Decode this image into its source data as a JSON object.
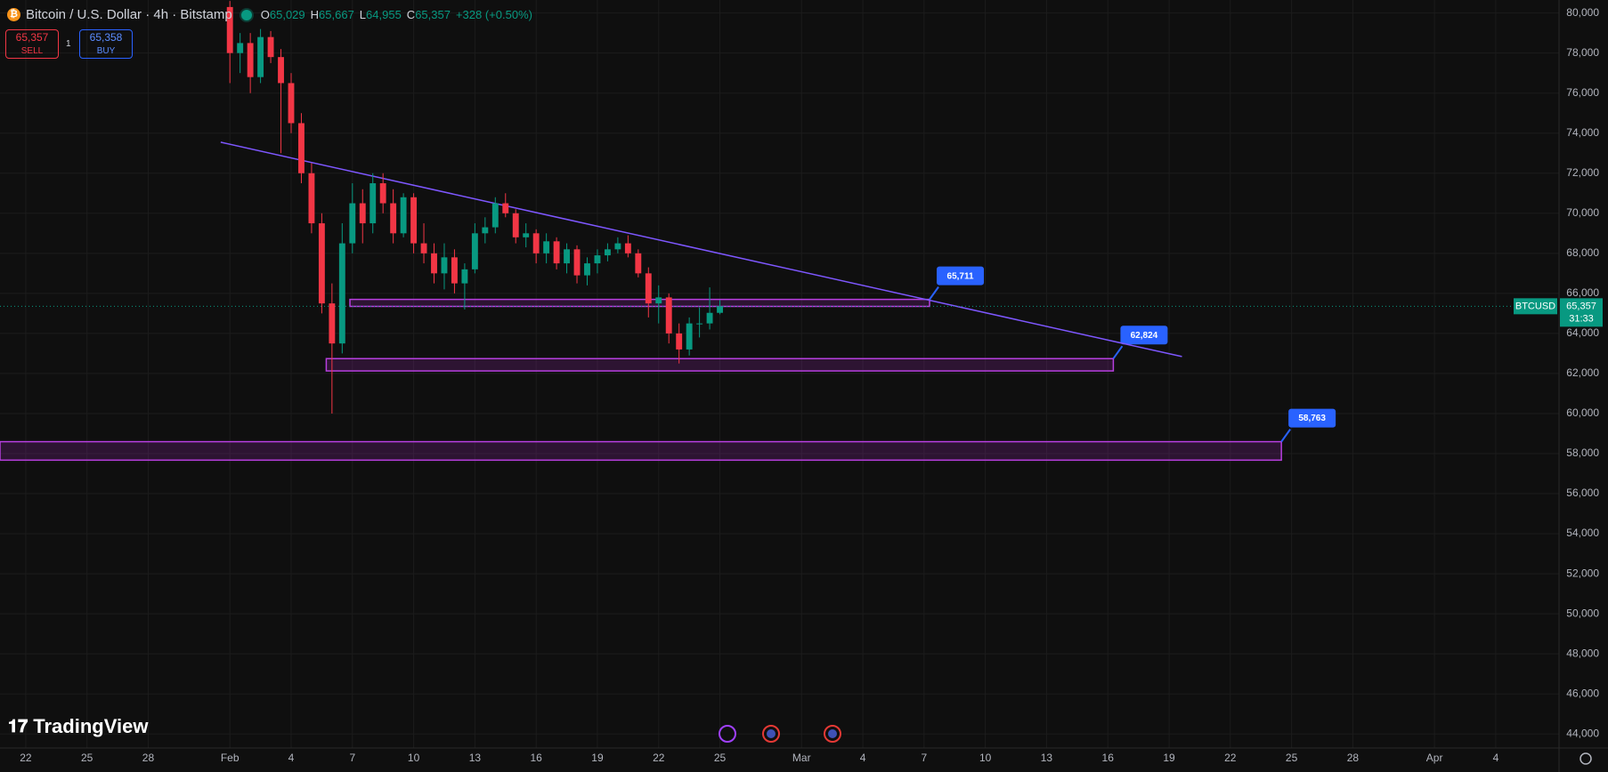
{
  "header": {
    "title": "Bitcoin / U.S. Dollar · 4h · Bitstamp",
    "ohlc": [
      {
        "key": "O",
        "value": "65,029"
      },
      {
        "key": "H",
        "value": "65,667"
      },
      {
        "key": "L",
        "value": "64,955"
      },
      {
        "key": "C",
        "value": "65,357"
      }
    ],
    "change": "+328 (+0.50%)",
    "sell": {
      "price": "65,357",
      "label": "SELL"
    },
    "spread": "1",
    "buy": {
      "price": "65,358",
      "label": "BUY"
    }
  },
  "price_tag": {
    "symbol": "BTCUSD",
    "price": "65,357",
    "countdown": "31:33"
  },
  "brand": "TradingView",
  "chart_data": {
    "type": "candlestick",
    "up_color": "#089981",
    "down_color": "#f23645",
    "grid": true,
    "xlim": [
      20.74,
      97.1
    ],
    "ylim": [
      43300,
      80650
    ],
    "xticks": [
      22,
      25,
      28,
      {
        "value": 32,
        "label": "Feb"
      },
      {
        "value": 35,
        "label": "4"
      },
      {
        "value": 38,
        "label": "7"
      },
      {
        "value": 41,
        "label": "10"
      },
      {
        "value": 44,
        "label": "13"
      },
      {
        "value": 47,
        "label": "16"
      },
      {
        "value": 50,
        "label": "19"
      },
      {
        "value": 53,
        "label": "22"
      },
      {
        "value": 56,
        "label": "25"
      },
      {
        "value": 60,
        "label": "Mar"
      },
      {
        "value": 63,
        "label": "4"
      },
      {
        "value": 66,
        "label": "7"
      },
      {
        "value": 69,
        "label": "10"
      },
      {
        "value": 72,
        "label": "13"
      },
      {
        "value": 75,
        "label": "16"
      },
      {
        "value": 78,
        "label": "19"
      },
      {
        "value": 81,
        "label": "22"
      },
      {
        "value": 84,
        "label": "25"
      },
      {
        "value": 87,
        "label": "28"
      },
      {
        "value": 91,
        "label": "Apr"
      },
      {
        "value": 94,
        "label": "4"
      }
    ],
    "yticks": [
      {
        "value": 44000,
        "label": "44,000"
      },
      {
        "value": 46000,
        "label": "46,000"
      },
      {
        "value": 48000,
        "label": "48,000"
      },
      {
        "value": 50000,
        "label": "50,000"
      },
      {
        "value": 52000,
        "label": "52,000"
      },
      {
        "value": 54000,
        "label": "54,000"
      },
      {
        "value": 56000,
        "label": "56,000"
      },
      {
        "value": 58000,
        "label": "58,000"
      },
      {
        "value": 60000,
        "label": "60,000"
      },
      {
        "value": 62000,
        "label": "62,000"
      },
      {
        "value": 64000,
        "label": "64,000"
      },
      {
        "value": 66000,
        "label": "66,000"
      },
      {
        "value": 68000,
        "label": "68,000"
      },
      {
        "value": 70000,
        "label": "70,000"
      },
      {
        "value": 72000,
        "label": "72,000"
      },
      {
        "value": 74000,
        "label": "74,000"
      },
      {
        "value": 76000,
        "label": "76,000"
      },
      {
        "value": 78000,
        "label": "78,000"
      },
      {
        "value": 80000,
        "label": "80,000"
      }
    ],
    "candles": {
      "x": [
        32,
        32.5,
        33,
        33.5,
        34,
        34.5,
        35,
        35.5,
        36,
        36.5,
        37,
        37.5,
        38,
        38.5,
        39,
        39.5,
        40,
        40.5,
        41,
        41.5,
        42,
        42.5,
        43,
        43.5,
        44,
        44.5,
        45,
        45.5,
        46,
        46.5,
        47,
        47.5,
        48,
        48.5,
        49,
        49.5,
        50,
        50.5,
        51,
        51.5,
        52,
        52.5,
        53,
        53.5,
        54,
        54.5,
        55,
        55.5,
        56
      ],
      "open": [
        80300,
        78000,
        78500,
        76800,
        78800,
        77800,
        76500,
        74500,
        72000,
        69500,
        65500,
        63500,
        68500,
        70500,
        69500,
        71500,
        70500,
        69000,
        70800,
        68500,
        68000,
        67000,
        67800,
        66500,
        67200,
        69000,
        69300,
        70500,
        70000,
        68800,
        69000,
        68000,
        68600,
        67500,
        68200,
        66900,
        67500,
        67900,
        68200,
        68500,
        68000,
        67000,
        65500,
        65800,
        64000,
        63200,
        64500,
        64500,
        65029
      ],
      "high": [
        80600,
        79000,
        79000,
        79200,
        79100,
        78200,
        77000,
        75000,
        72500,
        70000,
        66500,
        69500,
        71500,
        71200,
        72000,
        72000,
        71200,
        71000,
        71000,
        69500,
        68500,
        68500,
        68200,
        67500,
        69500,
        69800,
        70800,
        71000,
        70200,
        69500,
        69200,
        69000,
        68800,
        68500,
        68400,
        67800,
        68200,
        68500,
        68800,
        68900,
        68200,
        67300,
        66400,
        66000,
        64500,
        64800,
        65300,
        66300,
        65667
      ],
      "low": [
        76500,
        77000,
        76000,
        76500,
        77500,
        73000,
        74000,
        71500,
        69000,
        65000,
        60000,
        63000,
        68000,
        68500,
        69000,
        70000,
        68500,
        68800,
        68000,
        67500,
        66500,
        66200,
        66000,
        65200,
        67000,
        68500,
        69000,
        69800,
        68500,
        68300,
        67500,
        67500,
        67200,
        67000,
        66500,
        66400,
        67000,
        67600,
        68000,
        67800,
        66800,
        64800,
        64500,
        63500,
        62500,
        62900,
        63800,
        64200,
        64955
      ],
      "close": [
        78000,
        78500,
        76800,
        78800,
        77800,
        76500,
        74500,
        72000,
        69500,
        65500,
        63500,
        68500,
        70500,
        69500,
        71500,
        70500,
        69000,
        70800,
        68500,
        68000,
        67000,
        67800,
        66500,
        67200,
        69000,
        69300,
        70500,
        70000,
        68800,
        69000,
        68000,
        68600,
        67500,
        68200,
        66900,
        67500,
        67900,
        68200,
        68500,
        68000,
        67000,
        65500,
        65800,
        64000,
        63200,
        64500,
        64500,
        65029,
        65357
      ]
    },
    "last_price": 65357,
    "trendline": {
      "color": "#7e57ff",
      "x": [
        31.55,
        78.63
      ],
      "values": [
        73548,
        62845
      ]
    },
    "zones": [
      {
        "x": [
          37.88,
          66.27
        ],
        "low": 65350,
        "high": 65700,
        "label": "65,711"
      },
      {
        "x": [
          36.72,
          75.27
        ],
        "low": 62128,
        "high": 62742,
        "label": "62,824"
      },
      {
        "x": [
          20.74,
          83.5
        ],
        "low": 57673,
        "high": 58595,
        "label": "58,763"
      }
    ]
  }
}
